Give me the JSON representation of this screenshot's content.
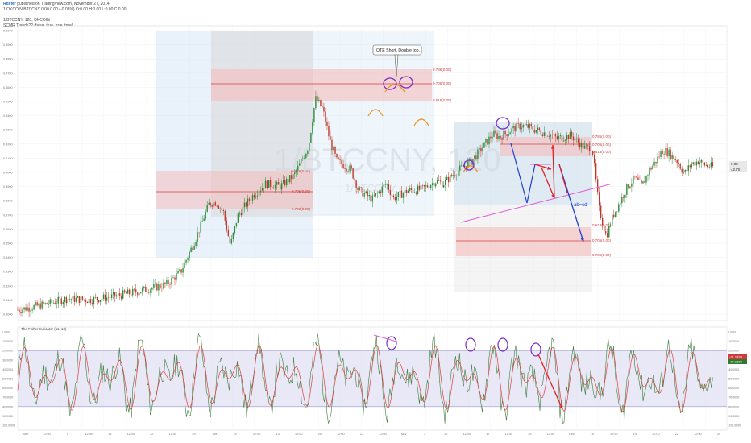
{
  "header": {
    "author": "Rdsfer",
    "published": "published on TradingView.com, November 27, 2014",
    "symbol_line": "1/OKCOIN:BTCCNY  0.00 0.00 (-0.03%)  O:0.00 H:0.00 L:0.00 C:0.00",
    "chart_title": "1/BTCCNY, 120, OKCOIN",
    "indicator_title": "SCMR Trends?? (false, true, true, true)"
  },
  "colors": {
    "candle_up": "#2e8b3a",
    "candle_down": "#c0392b",
    "fib_box": "#cfe2f3",
    "gray_box": "#d9d9d9",
    "pink_zone": "#f5b8b8",
    "oscillator_band": "#d9d9f0",
    "annotation_purple": "#7b2fbf",
    "annotation_orange": "#f0931a",
    "arrow_red": "#e01f1f",
    "arrow_blue": "#1f3fd6",
    "trend_magenta": "#e05ad8"
  },
  "watermark": {
    "symbol": "1/BTCCNY, 120",
    "name": "1/BTCCNY"
  },
  "annotations": {
    "callout": "QTE Short, Double top.",
    "abcd": "ab=cd"
  },
  "fib_levels": {
    "a": [
      "0.786(0.00)",
      "0.705(0.00)",
      "0.618(0.00)"
    ],
    "b": [
      "0.618(0.00)",
      "0.705(0.00)",
      "0.786(0.00)"
    ],
    "c": [
      "0.786(0.00)",
      "0.705(0.00)",
      "0.618(0.00)"
    ],
    "d": [
      "0.618(0.00)",
      "0.705(0.00)",
      "0.786(0.00)"
    ]
  },
  "price_axis": {
    "ticks": [
      "0.5000",
      "0.4900",
      "0.4800",
      "0.4700",
      "0.4600",
      "0.4500",
      "0.4400",
      "0.4300",
      "0.4200",
      "0.4100",
      "0.4000",
      "0.3900",
      "0.3800",
      "0.3700",
      "0.3600",
      "0.3500",
      "0.3400",
      "0.3300",
      "0.3200",
      "0.3100",
      "0.3000"
    ],
    "current_label_1": "0.00",
    "current_label_2": "42.70"
  },
  "oscillator": {
    "title": "The Fisher Indicator (11, 13)",
    "ticks": [
      "0.0000",
      "-10.0000",
      "-20.0000",
      "-30.0000",
      "-40.0000",
      "-50.0000",
      "-60.0000",
      "-70.0000",
      "-80.0000",
      "-90.0000",
      "-100.0000"
    ],
    "current_label_1": "-31.1933",
    "current_label_2": "-34.3280"
  },
  "time_axis": {
    "labels": [
      "Sep",
      "12:00",
      "8",
      "12:00",
      "15",
      "12:00",
      "22",
      "12:00",
      "29",
      "Oct",
      "6",
      "12:00",
      "13",
      "12:00",
      "20",
      "12:00",
      "27",
      "12:00",
      "Nov",
      "3",
      "10",
      "12:00",
      "17",
      "12:00",
      "24",
      "12:00",
      "Dec",
      "8",
      "12:00",
      "15",
      "12:00",
      "22",
      "12:00",
      "29"
    ]
  },
  "chart_data": {
    "type": "candlestick",
    "title": "1/BTCCNY, 120, OKCOIN",
    "xlabel": "",
    "ylabel": "",
    "ylim": [
      0.3,
      0.5
    ],
    "price_path": [
      [
        0,
        0.303
      ],
      [
        4,
        0.307
      ],
      [
        7,
        0.311
      ],
      [
        10,
        0.31
      ],
      [
        13,
        0.312
      ],
      [
        17,
        0.316
      ],
      [
        21,
        0.321
      ],
      [
        23,
        0.33
      ],
      [
        25,
        0.352
      ],
      [
        27,
        0.378
      ],
      [
        28,
        0.379
      ],
      [
        29,
        0.372
      ],
      [
        30,
        0.348
      ],
      [
        31,
        0.369
      ],
      [
        33,
        0.383
      ],
      [
        35,
        0.392
      ],
      [
        37,
        0.39
      ],
      [
        39,
        0.398
      ],
      [
        41,
        0.418
      ],
      [
        42,
        0.452
      ],
      [
        43,
        0.445
      ],
      [
        44,
        0.423
      ],
      [
        45,
        0.408
      ],
      [
        47,
        0.402
      ],
      [
        48,
        0.388
      ],
      [
        50,
        0.381
      ],
      [
        52,
        0.392
      ],
      [
        53,
        0.382
      ],
      [
        55,
        0.387
      ],
      [
        57,
        0.388
      ],
      [
        59,
        0.394
      ],
      [
        60,
        0.392
      ],
      [
        62,
        0.401
      ],
      [
        64,
        0.408
      ],
      [
        65,
        0.414
      ],
      [
        67,
        0.427
      ],
      [
        68,
        0.425
      ],
      [
        70,
        0.431
      ],
      [
        71,
        0.433
      ],
      [
        72,
        0.432
      ],
      [
        73,
        0.43
      ],
      [
        75,
        0.427
      ],
      [
        76,
        0.424
      ],
      [
        78,
        0.426
      ],
      [
        80,
        0.417
      ],
      [
        81,
        0.418
      ],
      [
        82,
        0.374
      ],
      [
        83,
        0.355
      ],
      [
        84,
        0.37
      ],
      [
        85,
        0.38
      ],
      [
        86,
        0.39
      ],
      [
        87,
        0.396
      ],
      [
        88,
        0.39
      ],
      [
        89,
        0.401
      ],
      [
        90,
        0.408
      ],
      [
        91,
        0.416
      ],
      [
        92,
        0.413
      ],
      [
        93,
        0.408
      ],
      [
        94,
        0.399
      ],
      [
        95,
        0.406
      ],
      [
        96,
        0.408
      ],
      [
        97,
        0.405
      ],
      [
        98,
        0.404
      ]
    ],
    "oscillator_range": [
      -100,
      0
    ]
  }
}
